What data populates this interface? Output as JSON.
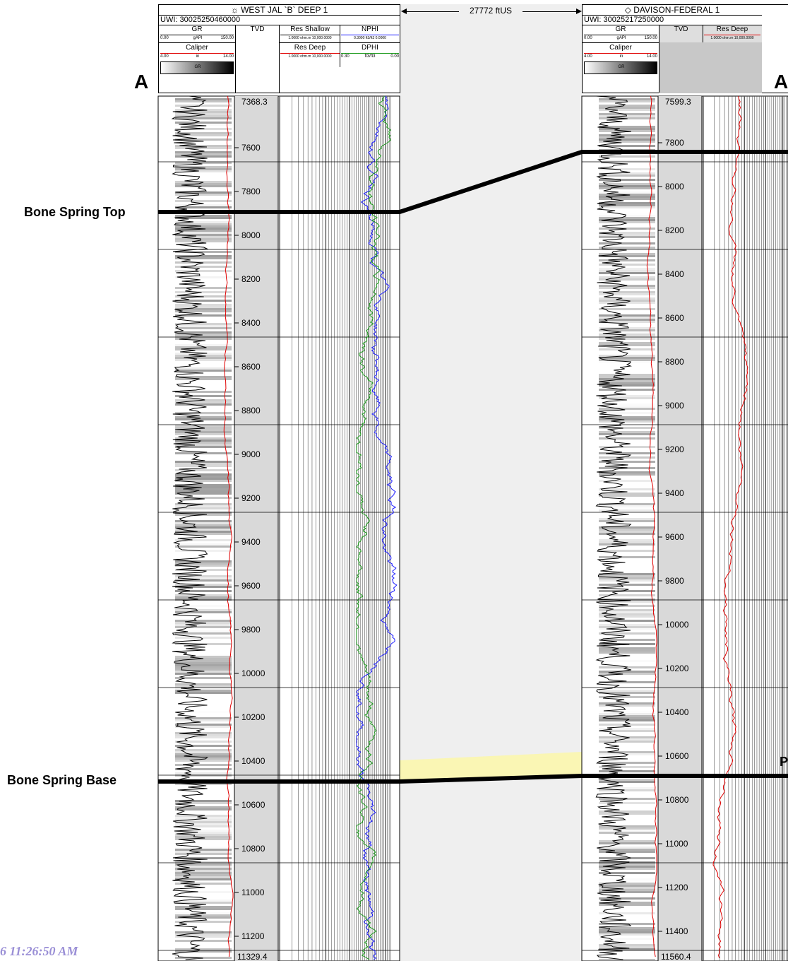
{
  "left_well": {
    "name": "WEST JAL `B` DEEP 1",
    "uwi": "UWI:  30025250460000",
    "gr_label": "GR",
    "gr_scale": [
      "0.00",
      "gAPI",
      "150.00"
    ],
    "tvd_label": "TVD",
    "res_shallow_label": "Res Shallow",
    "res_shallow_scale": "1.0000 ohm.m 10,000.0000",
    "nphi_label": "NPHI",
    "nphi_scale": "0.3000 ft3/ft3 0.0000",
    "caliper_label": "Caliper",
    "caliper_scale": [
      "4.00",
      "in",
      "14.00"
    ],
    "res_deep_label": "Res Deep",
    "res_deep_scale": "1.0000 ohm.m 10,000.0000",
    "dphi_label": "DPHI",
    "dphi_scale": [
      "0.30",
      "ft3/ft3",
      "0.00"
    ],
    "gr_bar_label": "GR",
    "top_depth": "7368.3",
    "bottom_depth": "11329.4",
    "depth_ticks": [
      "7600",
      "7800",
      "8000",
      "8200",
      "8400",
      "8600",
      "8800",
      "9000",
      "9200",
      "9400",
      "9600",
      "9800",
      "10000",
      "10200",
      "10400",
      "10600",
      "10800",
      "11000",
      "11200"
    ]
  },
  "right_well": {
    "name": "DAVISON-FEDERAL 1",
    "uwi": "UWI:  30025217250000",
    "gr_label": "GR",
    "gr_scale": [
      "0.00",
      "gAPI",
      "150.00"
    ],
    "tvd_label": "TVD",
    "res_deep_label": "Res Deep",
    "res_deep_scale": "1.0000 ohm.m 10,000.0000",
    "caliper_label": "Caliper",
    "caliper_scale": [
      "4.00",
      "in",
      "14.00"
    ],
    "gr_bar_label": "GR",
    "top_depth": "7599.3",
    "bottom_depth": "11560.4",
    "depth_ticks": [
      "7800",
      "8000",
      "8200",
      "8400",
      "8600",
      "8800",
      "9000",
      "9200",
      "9400",
      "9600",
      "9800",
      "10000",
      "10200",
      "10400",
      "10600",
      "10800",
      "11000",
      "11200",
      "11400"
    ]
  },
  "distance_label": "27772 ftUS",
  "section_letter_left": "A",
  "section_letter_right": "A",
  "tops": {
    "bone_spring_top": "Bone Spring Top",
    "bone_spring_base": "Bone Spring Base",
    "right_partial": "P"
  },
  "timestamp": "6 11:26:50 AM",
  "colors": {
    "gr_curve": "#000000",
    "caliper_curve": "#e00000",
    "nphi_curve": "#1a1aff",
    "dphi_curve": "#1a9a1a",
    "highlight": "#fbf7a9",
    "gap_bg": "#efefef"
  }
}
